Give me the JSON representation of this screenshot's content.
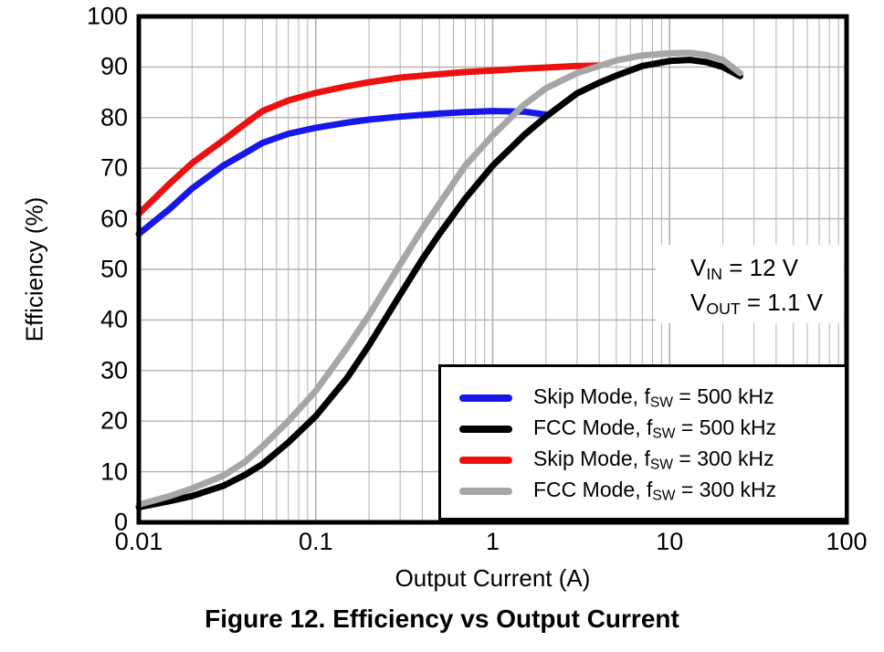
{
  "figure": {
    "caption": "Figure 12. Efficiency vs Output Current"
  },
  "annotation": {
    "lines": [
      {
        "pre": "V",
        "sub": "IN",
        "post": " = 12 V"
      },
      {
        "pre": "V",
        "sub": "OUT",
        "post": " = 1.1 V"
      }
    ]
  },
  "legend": {
    "position": "lower right",
    "items": [
      {
        "color": "#1717e8",
        "pre": "Skip Mode, f",
        "sub": "SW",
        "post": " = 500 kHz"
      },
      {
        "color": "#000000",
        "pre": "FCC Mode, f",
        "sub": "SW",
        "post": " = 500 kHz"
      },
      {
        "color": "#ec1111",
        "pre": "Skip Mode, f",
        "sub": "SW",
        "post": " = 300 kHz"
      },
      {
        "color": "#a6a6a6",
        "pre": "FCC Mode, f",
        "sub": "SW",
        "post": " = 300 kHz"
      }
    ]
  },
  "chart_data": {
    "type": "line",
    "title": "Figure 12. Efficiency vs Output Current",
    "xlabel": "Output Current (A)",
    "ylabel": "Efficiency (%)",
    "x_scale": "log",
    "xlim": [
      0.01,
      100
    ],
    "ylim": [
      0,
      100
    ],
    "x_ticks": [
      0.01,
      0.1,
      1,
      10,
      100
    ],
    "x_tick_labels": [
      "0.01",
      "0.1",
      "1",
      "10",
      "100"
    ],
    "y_ticks": [
      0,
      10,
      20,
      30,
      40,
      50,
      60,
      70,
      80,
      90,
      100
    ],
    "grid": true,
    "minor_grid": true,
    "grid_color": "#b0b0b0",
    "frame_color": "#000000",
    "legend_position": "lower right",
    "series": [
      {
        "name": "Skip Mode, fSW = 500 kHz",
        "color": "#1717e8",
        "points": [
          [
            0.01,
            57
          ],
          [
            0.015,
            62
          ],
          [
            0.02,
            66
          ],
          [
            0.03,
            70.5
          ],
          [
            0.04,
            73
          ],
          [
            0.05,
            75
          ],
          [
            0.07,
            76.8
          ],
          [
            0.1,
            78
          ],
          [
            0.15,
            79
          ],
          [
            0.2,
            79.6
          ],
          [
            0.3,
            80.2
          ],
          [
            0.5,
            80.8
          ],
          [
            0.7,
            81.1
          ],
          [
            1,
            81.3
          ],
          [
            1.5,
            81.2
          ],
          [
            2,
            80.6
          ]
        ]
      },
      {
        "name": "FCC Mode, fSW = 500 kHz",
        "color": "#000000",
        "points": [
          [
            0.01,
            3
          ],
          [
            0.015,
            4.2
          ],
          [
            0.02,
            5.2
          ],
          [
            0.03,
            7.2
          ],
          [
            0.04,
            9.4
          ],
          [
            0.05,
            11.5
          ],
          [
            0.07,
            15.8
          ],
          [
            0.1,
            21
          ],
          [
            0.15,
            28.5
          ],
          [
            0.2,
            35
          ],
          [
            0.3,
            45
          ],
          [
            0.4,
            52
          ],
          [
            0.5,
            57
          ],
          [
            0.7,
            64
          ],
          [
            1,
            70.5
          ],
          [
            1.5,
            76.5
          ],
          [
            2,
            80.2
          ],
          [
            3,
            84.8
          ],
          [
            4,
            86.9
          ],
          [
            5,
            88.3
          ],
          [
            7,
            90.2
          ],
          [
            10,
            91.2
          ],
          [
            13,
            91.4
          ],
          [
            16,
            91
          ],
          [
            20,
            90
          ],
          [
            25,
            88.2
          ]
        ]
      },
      {
        "name": "Skip Mode, fSW = 300 kHz",
        "color": "#ec1111",
        "points": [
          [
            0.01,
            61
          ],
          [
            0.015,
            67
          ],
          [
            0.02,
            71
          ],
          [
            0.03,
            75.5
          ],
          [
            0.04,
            78.8
          ],
          [
            0.05,
            81.3
          ],
          [
            0.07,
            83.4
          ],
          [
            0.1,
            84.9
          ],
          [
            0.15,
            86.2
          ],
          [
            0.2,
            87
          ],
          [
            0.3,
            87.9
          ],
          [
            0.5,
            88.6
          ],
          [
            0.7,
            89
          ],
          [
            1,
            89.3
          ],
          [
            1.5,
            89.7
          ],
          [
            2,
            89.9
          ],
          [
            3,
            90.2
          ],
          [
            4,
            90.3
          ]
        ]
      },
      {
        "name": "FCC Mode, fSW = 300 kHz",
        "color": "#a6a6a6",
        "points": [
          [
            0.01,
            3.5
          ],
          [
            0.015,
            5.2
          ],
          [
            0.02,
            6.7
          ],
          [
            0.03,
            9.2
          ],
          [
            0.04,
            12
          ],
          [
            0.05,
            15
          ],
          [
            0.07,
            20
          ],
          [
            0.1,
            26
          ],
          [
            0.15,
            34.5
          ],
          [
            0.2,
            41
          ],
          [
            0.3,
            51
          ],
          [
            0.4,
            58
          ],
          [
            0.5,
            63
          ],
          [
            0.7,
            70.5
          ],
          [
            1,
            76.5
          ],
          [
            1.5,
            82.5
          ],
          [
            2,
            85.8
          ],
          [
            3,
            88.8
          ],
          [
            4,
            90.2
          ],
          [
            5,
            91.3
          ],
          [
            7,
            92.3
          ],
          [
            10,
            92.7
          ],
          [
            13,
            92.8
          ],
          [
            16,
            92.4
          ],
          [
            20,
            91.4
          ],
          [
            25,
            88.8
          ]
        ]
      }
    ]
  }
}
